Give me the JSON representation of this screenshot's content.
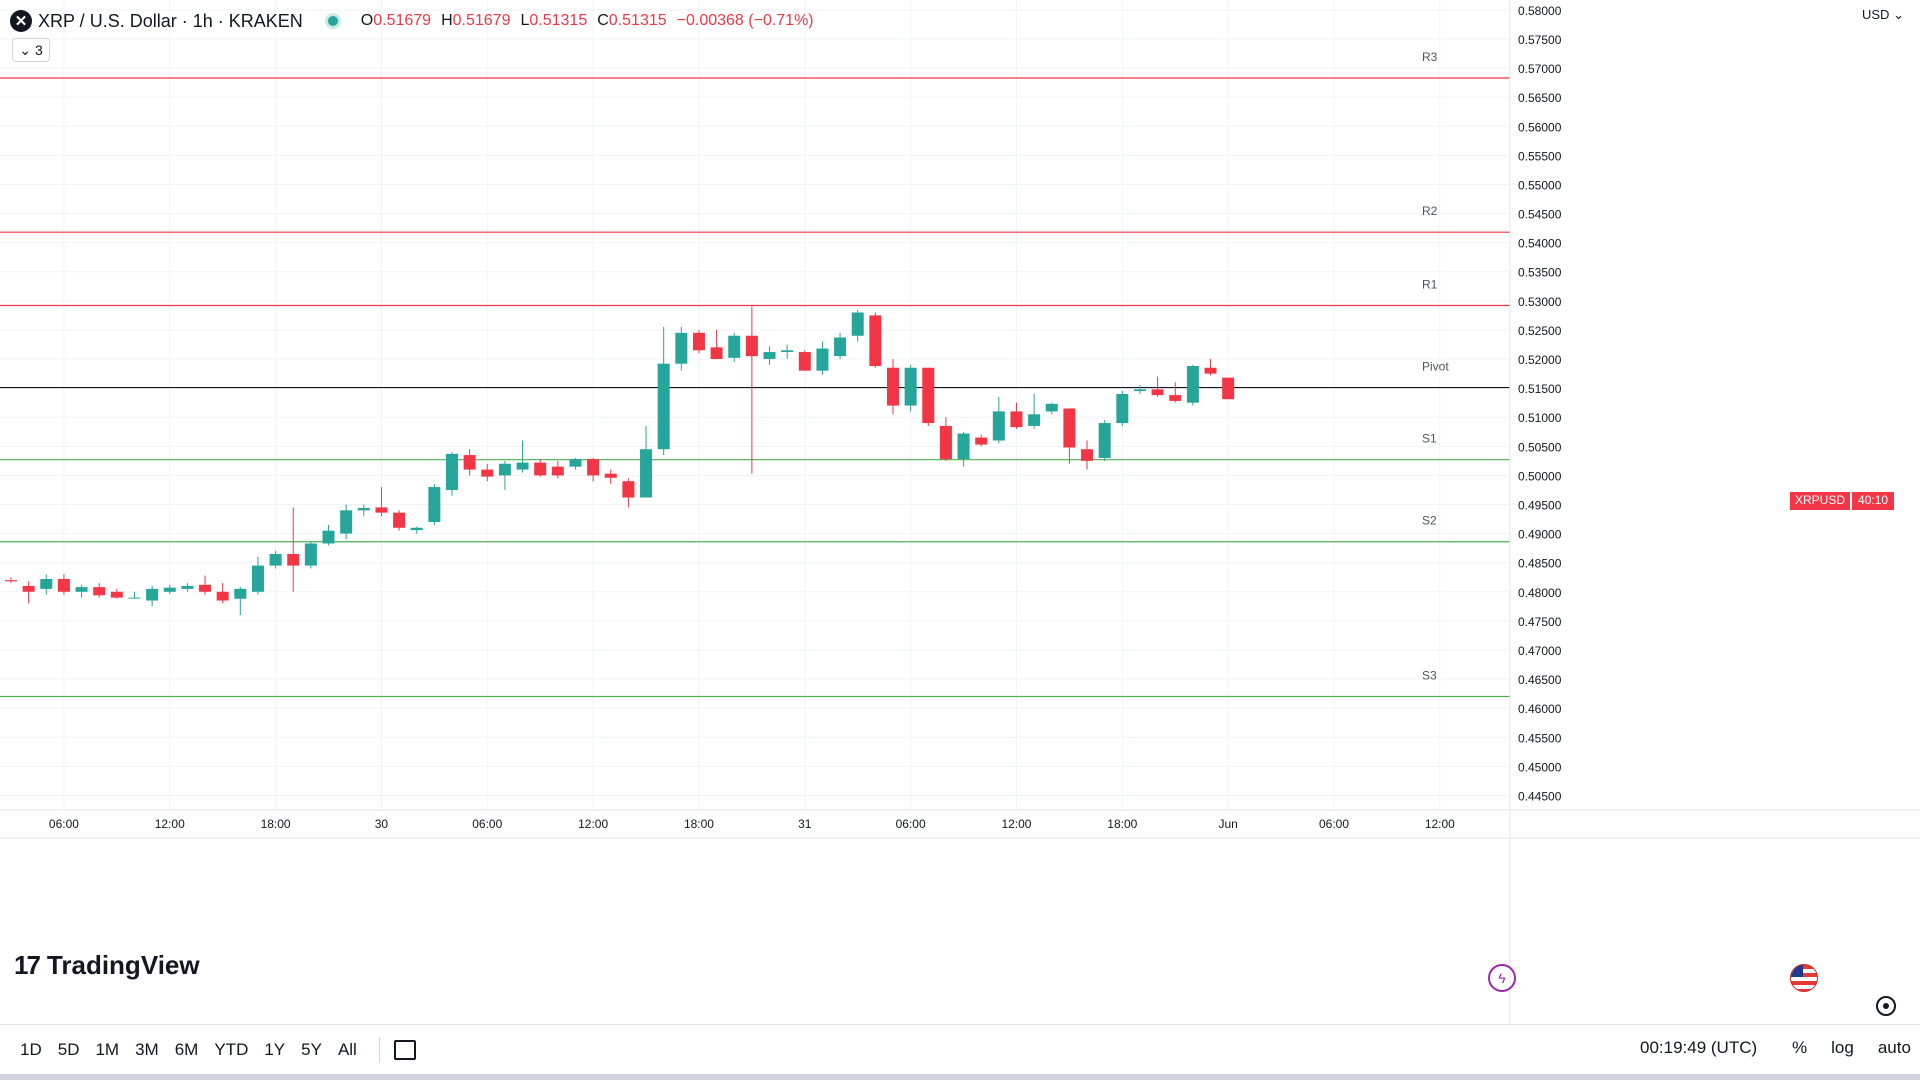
{
  "header": {
    "symbol_name": "XRP / U.S. Dollar",
    "interval": "1h",
    "exchange": "KRAKEN",
    "ohlc": {
      "o_label": "O",
      "o_value": "0.51679",
      "h_label": "H",
      "h_value": "0.51679",
      "l_label": "L",
      "l_value": "0.51315",
      "c_label": "C",
      "c_value": "0.51315",
      "change": "−0.00368 (−0.71%)"
    },
    "indicator_count": "3"
  },
  "price_axis": {
    "currency": "USD"
  },
  "badge": {
    "symbol": "XRPUSD",
    "countdown": "40:10"
  },
  "brand": {
    "name": "TradingView"
  },
  "bottom_bar": {
    "timeframes": [
      "1D",
      "5D",
      "1M",
      "3M",
      "6M",
      "YTD",
      "1Y",
      "5Y",
      "All"
    ],
    "clock": "00:19:49 (UTC)",
    "percent": "%",
    "log": "log",
    "auto": "auto"
  },
  "colors": {
    "up": "#26a69a",
    "down": "#f23645",
    "resistance": "#f23645",
    "support": "#4caf50",
    "pivot": "#131722"
  },
  "chart_data": {
    "type": "candlestick",
    "title": "XRP / U.S. Dollar · 1h · KRAKEN",
    "yrange": [
      0.4425,
      0.5817
    ],
    "y_ticks": [
      "0.44500",
      "0.45000",
      "0.45500",
      "0.46000",
      "0.46500",
      "0.47000",
      "0.47500",
      "0.48000",
      "0.48500",
      "0.49000",
      "0.49500",
      "0.50000",
      "0.50500",
      "0.51000",
      "0.51500",
      "0.52000",
      "0.52500",
      "0.53000",
      "0.53500",
      "0.54000",
      "0.54500",
      "0.55000",
      "0.55500",
      "0.56000",
      "0.56500",
      "0.57000",
      "0.57500",
      "0.58000"
    ],
    "x_ticks": [
      {
        "label": "06:00",
        "bar": 3
      },
      {
        "label": "12:00",
        "bar": 9
      },
      {
        "label": "18:00",
        "bar": 15
      },
      {
        "label": "30",
        "bar": 21
      },
      {
        "label": "06:00",
        "bar": 27
      },
      {
        "label": "12:00",
        "bar": 33
      },
      {
        "label": "18:00",
        "bar": 39
      },
      {
        "label": "31",
        "bar": 45
      },
      {
        "label": "06:00",
        "bar": 51
      },
      {
        "label": "12:00",
        "bar": 57
      },
      {
        "label": "18:00",
        "bar": 63
      },
      {
        "label": "Jun",
        "bar": 69
      },
      {
        "label": "06:00",
        "bar": 75
      },
      {
        "label": "12:00",
        "bar": 81
      }
    ],
    "levels": [
      {
        "name": "R3",
        "value": 0.5683,
        "kind": "resistance"
      },
      {
        "name": "R2",
        "value": 0.5418,
        "kind": "resistance"
      },
      {
        "name": "R1",
        "value": 0.5292,
        "kind": "resistance"
      },
      {
        "name": "Pivot",
        "value": 0.5151,
        "kind": "pivot"
      },
      {
        "name": "S1",
        "value": 0.5027,
        "kind": "support"
      },
      {
        "name": "S2",
        "value": 0.4886,
        "kind": "support"
      },
      {
        "name": "S3",
        "value": 0.462,
        "kind": "support"
      }
    ],
    "last_price": 0.51315,
    "candles": [
      {
        "o": 0.482,
        "h": 0.4825,
        "l": 0.4815,
        "c": 0.4818
      },
      {
        "o": 0.481,
        "h": 0.4818,
        "l": 0.478,
        "c": 0.48
      },
      {
        "o": 0.4805,
        "h": 0.483,
        "l": 0.4795,
        "c": 0.4822
      },
      {
        "o": 0.4822,
        "h": 0.483,
        "l": 0.4795,
        "c": 0.48
      },
      {
        "o": 0.48,
        "h": 0.4812,
        "l": 0.479,
        "c": 0.4808
      },
      {
        "o": 0.4808,
        "h": 0.4815,
        "l": 0.479,
        "c": 0.4794
      },
      {
        "o": 0.48,
        "h": 0.4805,
        "l": 0.4788,
        "c": 0.479
      },
      {
        "o": 0.479,
        "h": 0.48,
        "l": 0.4788,
        "c": 0.479
      },
      {
        "o": 0.4785,
        "h": 0.481,
        "l": 0.4775,
        "c": 0.4805
      },
      {
        "o": 0.48,
        "h": 0.4812,
        "l": 0.4796,
        "c": 0.4807
      },
      {
        "o": 0.4805,
        "h": 0.4815,
        "l": 0.48,
        "c": 0.481
      },
      {
        "o": 0.4812,
        "h": 0.4828,
        "l": 0.4795,
        "c": 0.48
      },
      {
        "o": 0.48,
        "h": 0.4815,
        "l": 0.478,
        "c": 0.4785
      },
      {
        "o": 0.4788,
        "h": 0.4808,
        "l": 0.476,
        "c": 0.4805
      },
      {
        "o": 0.48,
        "h": 0.486,
        "l": 0.4795,
        "c": 0.4845
      },
      {
        "o": 0.4845,
        "h": 0.487,
        "l": 0.484,
        "c": 0.4865
      },
      {
        "o": 0.4865,
        "h": 0.4945,
        "l": 0.48,
        "c": 0.4845
      },
      {
        "o": 0.4845,
        "h": 0.4885,
        "l": 0.484,
        "c": 0.4883
      },
      {
        "o": 0.4883,
        "h": 0.4915,
        "l": 0.488,
        "c": 0.4905
      },
      {
        "o": 0.49,
        "h": 0.495,
        "l": 0.489,
        "c": 0.494
      },
      {
        "o": 0.494,
        "h": 0.495,
        "l": 0.493,
        "c": 0.4944
      },
      {
        "o": 0.4945,
        "h": 0.498,
        "l": 0.493,
        "c": 0.4936
      },
      {
        "o": 0.4936,
        "h": 0.494,
        "l": 0.4905,
        "c": 0.491
      },
      {
        "o": 0.4906,
        "h": 0.4912,
        "l": 0.49,
        "c": 0.491
      },
      {
        "o": 0.492,
        "h": 0.4985,
        "l": 0.4915,
        "c": 0.498
      },
      {
        "o": 0.4975,
        "h": 0.504,
        "l": 0.4965,
        "c": 0.5037
      },
      {
        "o": 0.5035,
        "h": 0.5045,
        "l": 0.5,
        "c": 0.501
      },
      {
        "o": 0.501,
        "h": 0.502,
        "l": 0.499,
        "c": 0.4998
      },
      {
        "o": 0.5,
        "h": 0.5025,
        "l": 0.4975,
        "c": 0.502
      },
      {
        "o": 0.501,
        "h": 0.506,
        "l": 0.5005,
        "c": 0.5022
      },
      {
        "o": 0.5022,
        "h": 0.5028,
        "l": 0.4998,
        "c": 0.5
      },
      {
        "o": 0.5015,
        "h": 0.5025,
        "l": 0.4995,
        "c": 0.5
      },
      {
        "o": 0.5015,
        "h": 0.503,
        "l": 0.501,
        "c": 0.5028
      },
      {
        "o": 0.5028,
        "h": 0.503,
        "l": 0.499,
        "c": 0.5
      },
      {
        "o": 0.5003,
        "h": 0.501,
        "l": 0.4985,
        "c": 0.4996
      },
      {
        "o": 0.499,
        "h": 0.4995,
        "l": 0.4945,
        "c": 0.4962
      },
      {
        "o": 0.4962,
        "h": 0.5085,
        "l": 0.4962,
        "c": 0.5045
      },
      {
        "o": 0.5045,
        "h": 0.5255,
        "l": 0.5035,
        "c": 0.5192
      },
      {
        "o": 0.5192,
        "h": 0.5255,
        "l": 0.518,
        "c": 0.5245
      },
      {
        "o": 0.5245,
        "h": 0.525,
        "l": 0.521,
        "c": 0.5215
      },
      {
        "o": 0.522,
        "h": 0.525,
        "l": 0.52,
        "c": 0.52
      },
      {
        "o": 0.5202,
        "h": 0.5245,
        "l": 0.5195,
        "c": 0.524
      },
      {
        "o": 0.524,
        "h": 0.529,
        "l": 0.5003,
        "c": 0.5205
      },
      {
        "o": 0.52,
        "h": 0.5222,
        "l": 0.519,
        "c": 0.5212
      },
      {
        "o": 0.5212,
        "h": 0.5225,
        "l": 0.52,
        "c": 0.5215
      },
      {
        "o": 0.5212,
        "h": 0.5215,
        "l": 0.518,
        "c": 0.518
      },
      {
        "o": 0.518,
        "h": 0.523,
        "l": 0.5173,
        "c": 0.5218
      },
      {
        "o": 0.5205,
        "h": 0.5245,
        "l": 0.52,
        "c": 0.5237
      },
      {
        "o": 0.524,
        "h": 0.5285,
        "l": 0.523,
        "c": 0.528
      },
      {
        "o": 0.5275,
        "h": 0.528,
        "l": 0.5185,
        "c": 0.5188
      },
      {
        "o": 0.5185,
        "h": 0.52,
        "l": 0.5105,
        "c": 0.512
      },
      {
        "o": 0.512,
        "h": 0.519,
        "l": 0.511,
        "c": 0.5185
      },
      {
        "o": 0.5185,
        "h": 0.5185,
        "l": 0.5085,
        "c": 0.509
      },
      {
        "o": 0.5085,
        "h": 0.51,
        "l": 0.5025,
        "c": 0.5028
      },
      {
        "o": 0.5028,
        "h": 0.5075,
        "l": 0.5015,
        "c": 0.5072
      },
      {
        "o": 0.5065,
        "h": 0.507,
        "l": 0.505,
        "c": 0.5053
      },
      {
        "o": 0.506,
        "h": 0.5135,
        "l": 0.5055,
        "c": 0.511
      },
      {
        "o": 0.511,
        "h": 0.5125,
        "l": 0.508,
        "c": 0.5083
      },
      {
        "o": 0.5085,
        "h": 0.514,
        "l": 0.508,
        "c": 0.5105
      },
      {
        "o": 0.511,
        "h": 0.5125,
        "l": 0.5105,
        "c": 0.5123
      },
      {
        "o": 0.5115,
        "h": 0.5115,
        "l": 0.502,
        "c": 0.5048
      },
      {
        "o": 0.5045,
        "h": 0.506,
        "l": 0.501,
        "c": 0.5025
      },
      {
        "o": 0.503,
        "h": 0.5095,
        "l": 0.5025,
        "c": 0.509
      },
      {
        "o": 0.509,
        "h": 0.5145,
        "l": 0.5085,
        "c": 0.514
      },
      {
        "o": 0.5145,
        "h": 0.5155,
        "l": 0.514,
        "c": 0.5148
      },
      {
        "o": 0.5148,
        "h": 0.517,
        "l": 0.5135,
        "c": 0.5138
      },
      {
        "o": 0.5138,
        "h": 0.516,
        "l": 0.5125,
        "c": 0.5128
      },
      {
        "o": 0.5125,
        "h": 0.519,
        "l": 0.512,
        "c": 0.5188
      },
      {
        "o": 0.5185,
        "h": 0.52,
        "l": 0.5172,
        "c": 0.5175
      },
      {
        "o": 0.5168,
        "h": 0.5168,
        "l": 0.5131,
        "c": 0.5131
      }
    ]
  }
}
